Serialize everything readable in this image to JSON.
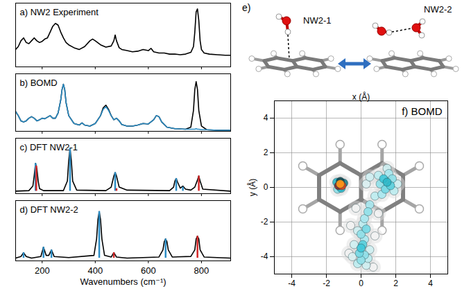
{
  "chart_data": [
    {
      "type": "line",
      "title": "a) NW2 Experiment",
      "xlim": [
        100,
        910
      ],
      "xticks": [
        200,
        400,
        600,
        800
      ],
      "ylim": [
        0,
        1.1
      ],
      "tick_labels": false,
      "series": [
        {
          "color": "#000000",
          "x": [
            100,
            110,
            120,
            130,
            140,
            150,
            160,
            170,
            180,
            190,
            200,
            210,
            220,
            230,
            240,
            250,
            260,
            270,
            280,
            290,
            300,
            320,
            340,
            360,
            380,
            390,
            400,
            420,
            440,
            460,
            470,
            475,
            480,
            490,
            500,
            520,
            540,
            560,
            580,
            600,
            610,
            620,
            640,
            660,
            680,
            700,
            720,
            740,
            760,
            770,
            775,
            780,
            785,
            790,
            795,
            800,
            810,
            830,
            860,
            890,
            910
          ],
          "values": [
            0.3,
            0.35,
            0.45,
            0.5,
            0.42,
            0.4,
            0.45,
            0.5,
            0.45,
            0.42,
            0.44,
            0.48,
            0.5,
            0.6,
            0.7,
            0.75,
            0.72,
            0.6,
            0.5,
            0.42,
            0.38,
            0.33,
            0.3,
            0.35,
            0.45,
            0.48,
            0.45,
            0.38,
            0.34,
            0.36,
            0.45,
            0.55,
            0.45,
            0.33,
            0.3,
            0.28,
            0.26,
            0.27,
            0.3,
            0.28,
            0.32,
            0.26,
            0.24,
            0.24,
            0.22,
            0.22,
            0.21,
            0.22,
            0.25,
            0.35,
            0.6,
            0.95,
            1.0,
            0.8,
            0.45,
            0.3,
            0.24,
            0.22,
            0.21,
            0.2,
            0.2
          ]
        }
      ]
    },
    {
      "type": "line",
      "title": "b) BOMD",
      "xlim": [
        100,
        910
      ],
      "xticks": [
        200,
        400,
        600,
        800
      ],
      "ylim": [
        0,
        1.1
      ],
      "tick_labels": false,
      "x": [
        100,
        110,
        120,
        130,
        140,
        150,
        160,
        170,
        180,
        190,
        200,
        210,
        220,
        230,
        240,
        250,
        260,
        270,
        275,
        280,
        285,
        290,
        300,
        320,
        340,
        350,
        360,
        380,
        400,
        420,
        430,
        440,
        450,
        460,
        470,
        480,
        490,
        500,
        520,
        540,
        560,
        580,
        600,
        620,
        630,
        640,
        650,
        670,
        700,
        740,
        760,
        770,
        775,
        780,
        785,
        790,
        800,
        820,
        860,
        910
      ],
      "series": [
        {
          "color": "#000000",
          "values": [
            0.38,
            0.3,
            0.2,
            0.18,
            0.2,
            0.25,
            0.28,
            0.25,
            0.2,
            0.22,
            0.25,
            0.24,
            0.27,
            0.3,
            0.25,
            0.25,
            0.35,
            0.6,
            0.8,
            0.9,
            0.8,
            0.55,
            0.3,
            0.15,
            0.12,
            0.16,
            0.12,
            0.1,
            0.15,
            0.3,
            0.45,
            0.5,
            0.42,
            0.3,
            0.22,
            0.25,
            0.2,
            0.13,
            0.1,
            0.1,
            0.12,
            0.15,
            0.14,
            0.22,
            0.3,
            0.28,
            0.18,
            0.08,
            0.05,
            0.04,
            0.08,
            0.4,
            0.8,
            0.95,
            0.8,
            0.4,
            0.1,
            0.03,
            0.02,
            0.02
          ]
        },
        {
          "color": "#2b8cc4",
          "values": [
            0.38,
            0.3,
            0.2,
            0.18,
            0.2,
            0.25,
            0.28,
            0.25,
            0.2,
            0.22,
            0.25,
            0.24,
            0.27,
            0.3,
            0.25,
            0.25,
            0.35,
            0.6,
            0.8,
            0.9,
            0.8,
            0.55,
            0.3,
            0.15,
            0.12,
            0.16,
            0.12,
            0.1,
            0.15,
            0.3,
            0.42,
            0.47,
            0.4,
            0.3,
            0.22,
            0.25,
            0.2,
            0.13,
            0.1,
            0.1,
            0.12,
            0.15,
            0.14,
            0.22,
            0.3,
            0.28,
            0.18,
            0.08,
            0.05,
            0.04,
            0.04,
            0.04,
            0.04,
            0.05,
            0.04,
            0.04,
            0.03,
            0.03,
            0.02,
            0.02
          ]
        }
      ]
    },
    {
      "type": "line",
      "title": "c) DFT NW2-1",
      "xlim": [
        100,
        910
      ],
      "xticks": [
        200,
        400,
        600,
        800
      ],
      "ylim": [
        -0.05,
        1.05
      ],
      "tick_labels": false,
      "series": [
        {
          "type": "line",
          "color": "#000000",
          "x": [
            100,
            150,
            165,
            170,
            175,
            180,
            185,
            190,
            205,
            280,
            295,
            300,
            305,
            310,
            315,
            330,
            440,
            460,
            470,
            475,
            480,
            490,
            520,
            680,
            695,
            700,
            705,
            710,
            720,
            730,
            740,
            760,
            775,
            785,
            790,
            795,
            805,
            910
          ],
          "values": [
            0,
            0.01,
            0.1,
            0.3,
            0.55,
            0.45,
            0.2,
            0.05,
            0.01,
            0.01,
            0.2,
            0.6,
            0.85,
            0.6,
            0.2,
            0.02,
            0.01,
            0.08,
            0.3,
            0.37,
            0.3,
            0.08,
            0.02,
            0.01,
            0.08,
            0.2,
            0.25,
            0.18,
            0.06,
            0.1,
            0.04,
            0.02,
            0.08,
            0.22,
            0.3,
            0.2,
            0.04,
            0
          ]
        },
        {
          "type": "stick",
          "color": "#2b8cc4",
          "x": [
            175,
            305,
            475,
            705,
            730
          ],
          "values": [
            0.55,
            0.85,
            0.37,
            0.25,
            0.08
          ]
        },
        {
          "type": "stick",
          "color": "#d62728",
          "x": [
            178,
            480,
            790
          ],
          "values": [
            0.5,
            0.05,
            0.3
          ]
        }
      ]
    },
    {
      "type": "line",
      "title": "d) DFT NW2-2",
      "x_label": "Wavenumbers (cm⁻¹)",
      "xlim": [
        100,
        910
      ],
      "xticks": [
        200,
        400,
        600,
        800
      ],
      "ylim": [
        -0.05,
        1.05
      ],
      "tick_labels": "x",
      "series": [
        {
          "type": "line",
          "color": "#000000",
          "x": [
            100,
            120,
            130,
            140,
            160,
            195,
            205,
            215,
            225,
            235,
            245,
            300,
            395,
            405,
            410,
            415,
            420,
            425,
            435,
            460,
            470,
            480,
            520,
            640,
            655,
            660,
            665,
            670,
            675,
            690,
            760,
            775,
            780,
            785,
            790,
            795,
            810,
            910
          ],
          "values": [
            0,
            0.03,
            0.1,
            0.03,
            0,
            0.03,
            0.2,
            0.05,
            0.05,
            0.15,
            0.03,
            0.01,
            0.05,
            0.35,
            0.7,
            0.85,
            0.7,
            0.35,
            0.05,
            0.02,
            0.1,
            0.02,
            0,
            0.02,
            0.15,
            0.3,
            0.35,
            0.3,
            0.15,
            0.02,
            0.03,
            0.15,
            0.35,
            0.4,
            0.35,
            0.15,
            0.02,
            0
          ]
        },
        {
          "type": "stick",
          "color": "#2b8cc4",
          "x": [
            130,
            205,
            235,
            415,
            665
          ],
          "values": [
            0.1,
            0.2,
            0.15,
            0.85,
            0.35
          ]
        },
        {
          "type": "stick",
          "color": "#d62728",
          "x": [
            470,
            785
          ],
          "values": [
            0.1,
            0.4
          ]
        }
      ]
    },
    {
      "type": "diagram",
      "title": "e)",
      "labels": [
        "NW2-1",
        "NW2-2"
      ]
    },
    {
      "type": "density",
      "title": "f) BOMD",
      "x_label": "x (Å)",
      "y_label": "y (Å)",
      "xlim": [
        -5,
        5
      ],
      "ylim": [
        -5,
        5
      ],
      "xticks": [
        -4,
        -2,
        0,
        2,
        4
      ],
      "yticks": [
        -4,
        -2,
        0,
        2,
        4
      ],
      "grid": true,
      "points": {
        "x": [
          -1.2,
          -1.1,
          -1.3,
          -1.2,
          -1.0,
          -1.4,
          -1.15,
          -1.35,
          1.3,
          1.5,
          1.7,
          1.4,
          1.1,
          1.8,
          1.6,
          1.2,
          1.9,
          1.0,
          1.5,
          2.1,
          0.5,
          0.3,
          0.8,
          0.5,
          0.4,
          0.2,
          0.1,
          0.3,
          0.0,
          -0.2,
          0.2,
          0.1,
          0.0,
          -0.1,
          0.2,
          0.0,
          -0.2,
          0.3,
          -0.4,
          0.5,
          -0.5,
          0.4,
          -0.6,
          0.8,
          -0.7,
          0.7,
          1.0,
          -0.3
        ],
        "y": [
          0.2,
          0.1,
          0.1,
          0.35,
          0.25,
          0.3,
          -0.05,
          -0.1,
          0.5,
          0.3,
          0.1,
          -0.1,
          0.2,
          0.5,
          0.8,
          -0.4,
          -0.2,
          0.7,
          1.1,
          0.2,
          0.6,
          0.2,
          -0.5,
          -1.0,
          -1.4,
          -1.8,
          -2.1,
          -2.4,
          -2.7,
          -2.5,
          -3.0,
          -3.3,
          -3.5,
          -3.8,
          -3.9,
          -4.2,
          -4.4,
          -4.5,
          -3.3,
          -3.6,
          -4.0,
          -4.1,
          -2.2,
          -2.8,
          -3.8,
          -4.6,
          -1.5,
          -1.2
        ],
        "density": [
          1.0,
          0.9,
          0.8,
          0.7,
          0.6,
          0.5,
          0.5,
          0.3,
          0.45,
          0.5,
          0.4,
          0.35,
          0.3,
          0.3,
          0.25,
          0.25,
          0.2,
          0.2,
          0.15,
          0.15,
          0.15,
          0.12,
          0.2,
          0.25,
          0.3,
          0.25,
          0.2,
          0.35,
          0.3,
          0.15,
          0.25,
          0.4,
          0.45,
          0.35,
          0.3,
          0.3,
          0.2,
          0.15,
          0.15,
          0.15,
          0.12,
          0.2,
          0.05,
          0.05,
          0.05,
          0.05,
          0.05,
          0.05
        ]
      }
    }
  ]
}
